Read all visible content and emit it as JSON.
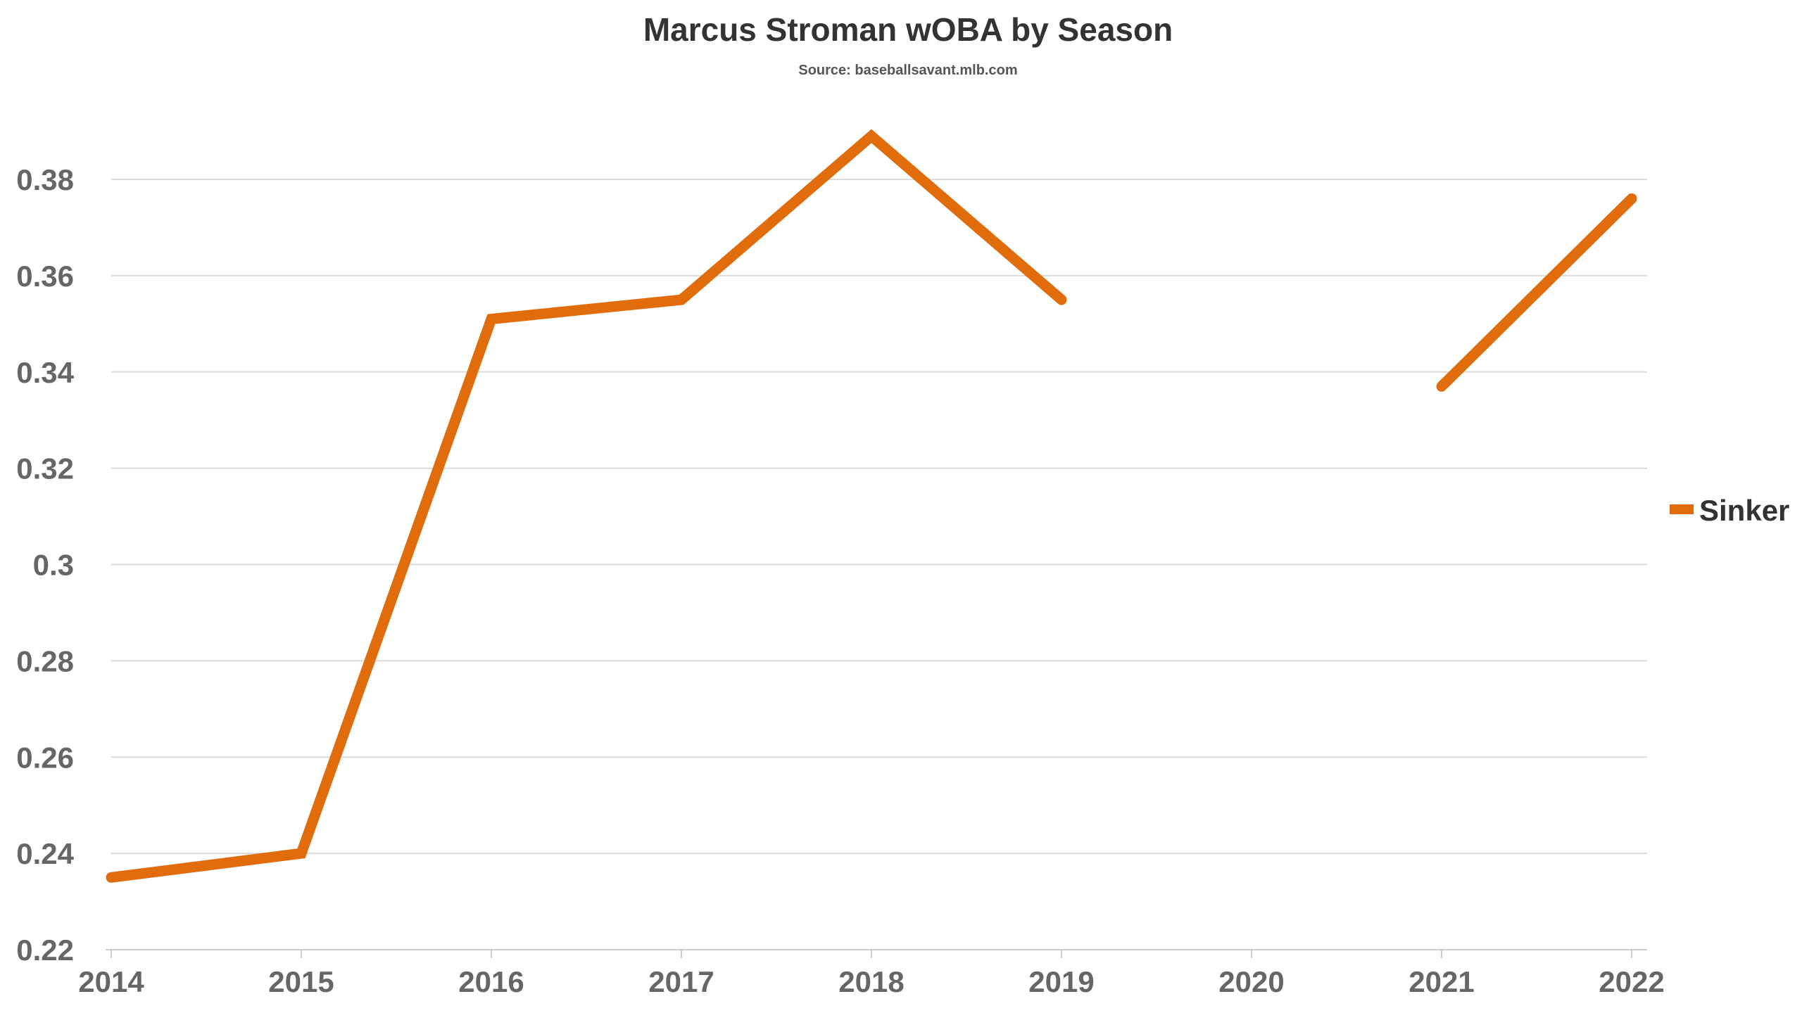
{
  "chart_data": {
    "type": "line",
    "title": "Marcus Stroman wOBA by Season",
    "subtitle": "Source: baseballsavant.mlb.com",
    "xlabel": "",
    "ylabel": "",
    "categories": [
      "2014",
      "2015",
      "2016",
      "2017",
      "2018",
      "2019",
      "2020",
      "2021",
      "2022"
    ],
    "ylim": [
      0.22,
      0.38
    ],
    "yticks": [
      0.22,
      0.24,
      0.26,
      0.28,
      0.3,
      0.32,
      0.34,
      0.36,
      0.38
    ],
    "ytick_labels": [
      "0.22",
      "0.24",
      "0.26",
      "0.28",
      "0.3",
      "0.32",
      "0.34",
      "0.36",
      "0.38"
    ],
    "grid": true,
    "legend_position": "right",
    "series": [
      {
        "name": "Sinker",
        "color": "#e06c0b",
        "values": [
          0.235,
          0.24,
          0.351,
          0.355,
          0.389,
          0.355,
          null,
          0.337,
          0.376
        ]
      }
    ]
  }
}
